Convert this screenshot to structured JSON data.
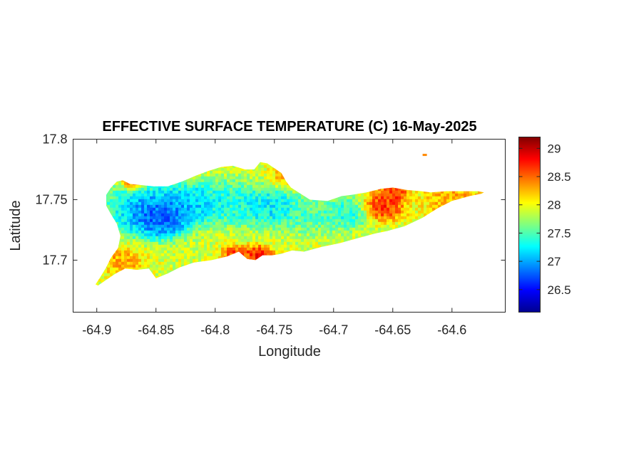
{
  "chart_data": {
    "type": "heatmap",
    "title": "EFFECTIVE SURFACE TEMPERATURE (C) 16-May-2025",
    "xlabel": "Longitude",
    "ylabel": "Latitude",
    "xlim": [
      -64.92,
      -64.555
    ],
    "ylim": [
      17.657,
      17.8
    ],
    "xticks": [
      -64.9,
      -64.85,
      -64.8,
      -64.75,
      -64.7,
      -64.65,
      -64.6
    ],
    "xtick_labels": [
      "-64.9",
      "-64.85",
      "-64.8",
      "-64.75",
      "-64.7",
      "-64.65",
      "-64.6"
    ],
    "yticks": [
      17.7,
      17.75,
      17.8
    ],
    "ytick_labels": [
      "17.7",
      "17.75",
      "17.8"
    ],
    "colorbar": {
      "colormap": "jet",
      "range": [
        26.1,
        29.2
      ],
      "ticks": [
        26.5,
        27,
        27.5,
        28,
        28.5,
        29
      ],
      "tick_labels": [
        "26.5",
        "27",
        "27.5",
        "28",
        "28.5",
        "29"
      ]
    },
    "grid": false,
    "island_outline_lonlat": [
      [
        -64.899,
        17.679
      ],
      [
        -64.893,
        17.683
      ],
      [
        -64.884,
        17.689
      ],
      [
        -64.876,
        17.693
      ],
      [
        -64.866,
        17.692
      ],
      [
        -64.856,
        17.693
      ],
      [
        -64.85,
        17.685
      ],
      [
        -64.84,
        17.689
      ],
      [
        -64.83,
        17.694
      ],
      [
        -64.818,
        17.698
      ],
      [
        -64.803,
        17.7
      ],
      [
        -64.79,
        17.703
      ],
      [
        -64.78,
        17.707
      ],
      [
        -64.773,
        17.701
      ],
      [
        -64.766,
        17.7
      ],
      [
        -64.76,
        17.704
      ],
      [
        -64.752,
        17.704
      ],
      [
        -64.745,
        17.705
      ],
      [
        -64.735,
        17.708
      ],
      [
        -64.725,
        17.707
      ],
      [
        -64.71,
        17.711
      ],
      [
        -64.695,
        17.714
      ],
      [
        -64.68,
        17.718
      ],
      [
        -64.665,
        17.722
      ],
      [
        -64.655,
        17.724
      ],
      [
        -64.64,
        17.728
      ],
      [
        -64.625,
        17.735
      ],
      [
        -64.612,
        17.743
      ],
      [
        -64.6,
        17.749
      ],
      [
        -64.585,
        17.753
      ],
      [
        -64.575,
        17.755
      ],
      [
        -64.573,
        17.756
      ],
      [
        -64.578,
        17.757
      ],
      [
        -64.59,
        17.757
      ],
      [
        -64.605,
        17.757
      ],
      [
        -64.618,
        17.756
      ],
      [
        -64.626,
        17.757
      ],
      [
        -64.638,
        17.758
      ],
      [
        -64.65,
        17.76
      ],
      [
        -64.66,
        17.759
      ],
      [
        -64.672,
        17.756
      ],
      [
        -64.685,
        17.754
      ],
      [
        -64.693,
        17.753
      ],
      [
        -64.705,
        17.749
      ],
      [
        -64.72,
        17.75
      ],
      [
        -64.728,
        17.755
      ],
      [
        -64.736,
        17.76
      ],
      [
        -64.74,
        17.765
      ],
      [
        -64.744,
        17.772
      ],
      [
        -64.75,
        17.776
      ],
      [
        -64.756,
        17.78
      ],
      [
        -64.762,
        17.781
      ],
      [
        -64.767,
        17.775
      ],
      [
        -64.775,
        17.775
      ],
      [
        -64.785,
        17.778
      ],
      [
        -64.795,
        17.777
      ],
      [
        -64.805,
        17.774
      ],
      [
        -64.816,
        17.77
      ],
      [
        -64.828,
        17.765
      ],
      [
        -64.84,
        17.761
      ],
      [
        -64.852,
        17.761
      ],
      [
        -64.862,
        17.762
      ],
      [
        -64.872,
        17.763
      ],
      [
        -64.878,
        17.766
      ],
      [
        -64.883,
        17.765
      ],
      [
        -64.888,
        17.76
      ],
      [
        -64.892,
        17.754
      ],
      [
        -64.892,
        17.745
      ],
      [
        -64.888,
        17.738
      ],
      [
        -64.883,
        17.73
      ],
      [
        -64.88,
        17.72
      ],
      [
        -64.882,
        17.71
      ],
      [
        -64.888,
        17.702
      ],
      [
        -64.892,
        17.694
      ],
      [
        -64.897,
        17.686
      ],
      [
        -64.901,
        17.68
      ]
    ],
    "temperature_centers": [
      {
        "lon": -64.848,
        "lat": 17.737,
        "value": 26.3,
        "radius": 0.02
      },
      {
        "lon": -64.86,
        "lat": 17.745,
        "value": 26.9,
        "radius": 0.025
      },
      {
        "lon": -64.822,
        "lat": 17.748,
        "value": 26.9,
        "radius": 0.02
      },
      {
        "lon": -64.79,
        "lat": 17.748,
        "value": 27.2,
        "radius": 0.022
      },
      {
        "lon": -64.755,
        "lat": 17.745,
        "value": 27.0,
        "radius": 0.02
      },
      {
        "lon": -64.72,
        "lat": 17.738,
        "value": 27.4,
        "radius": 0.018
      },
      {
        "lon": -64.69,
        "lat": 17.74,
        "value": 27.2,
        "radius": 0.016
      },
      {
        "lon": -64.765,
        "lat": 17.705,
        "value": 29.0,
        "radius": 0.01
      },
      {
        "lon": -64.785,
        "lat": 17.707,
        "value": 28.8,
        "radius": 0.008
      },
      {
        "lon": -64.66,
        "lat": 17.745,
        "value": 28.9,
        "radius": 0.014
      },
      {
        "lon": -64.65,
        "lat": 17.758,
        "value": 28.9,
        "radius": 0.01
      },
      {
        "lon": -64.6,
        "lat": 17.752,
        "value": 28.4,
        "radius": 0.02
      },
      {
        "lon": -64.88,
        "lat": 17.7,
        "value": 28.4,
        "radius": 0.015
      },
      {
        "lon": -64.87,
        "lat": 17.765,
        "value": 28.7,
        "radius": 0.008
      },
      {
        "lon": -64.74,
        "lat": 17.77,
        "value": 28.3,
        "radius": 0.012
      }
    ],
    "background_value": 27.9,
    "islet": {
      "lon": -64.623,
      "lat": 17.787,
      "value": 28.4
    }
  }
}
